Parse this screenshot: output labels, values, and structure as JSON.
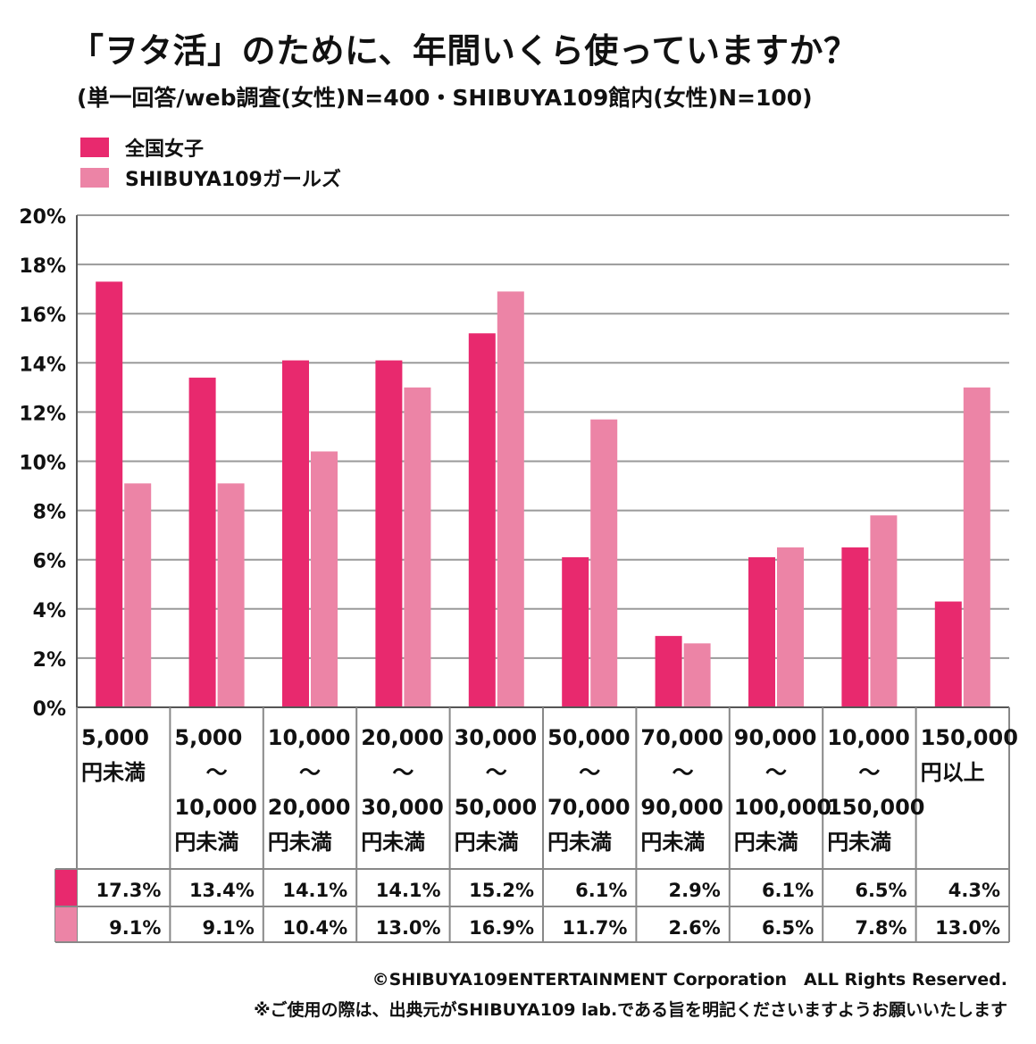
{
  "title": "「ヲタ活」のために、年間いくら使っていますか？",
  "subtitle": "(単一回答/web調査(女性)N=400・SHIBUYA109館内(女性)N=100)",
  "colors": {
    "series1": "#e8296e",
    "series2": "#ec84a6",
    "grid": "#9a9a9a",
    "axis": "#555555"
  },
  "chart_data": {
    "type": "bar",
    "ylim": [
      0,
      20
    ],
    "yticks": [
      "0%",
      "2%",
      "4%",
      "6%",
      "8%",
      "10%",
      "12%",
      "14%",
      "16%",
      "18%",
      "20%"
    ],
    "legend_position": "top-left",
    "grid": true,
    "categories": [
      [
        "5,000",
        "円未満"
      ],
      [
        "5,000",
        "～",
        "10,000",
        "円未満"
      ],
      [
        "10,000",
        "～",
        "20,000",
        "円未満"
      ],
      [
        "20,000",
        "～",
        "30,000",
        "円未満"
      ],
      [
        "30,000",
        "～",
        "50,000",
        "円未満"
      ],
      [
        "50,000",
        "～",
        "70,000",
        "円未満"
      ],
      [
        "70,000",
        "～",
        "90,000",
        "円未満"
      ],
      [
        "90,000",
        "～",
        "100,000",
        "円未満"
      ],
      [
        "10,000",
        "～",
        "150,000",
        "円未満"
      ],
      [
        "150,000",
        "円以上"
      ]
    ],
    "series": [
      {
        "name": "全国女子",
        "values": [
          17.3,
          13.4,
          14.1,
          14.1,
          15.2,
          6.1,
          2.9,
          6.1,
          6.5,
          4.3
        ],
        "labels": [
          "17.3%",
          "13.4%",
          "14.1%",
          "14.1%",
          "15.2%",
          "6.1%",
          "2.9%",
          "6.1%",
          "6.5%",
          "4.3%"
        ]
      },
      {
        "name": "SHIBUYA109ガールズ",
        "values": [
          9.1,
          9.1,
          10.4,
          13.0,
          16.9,
          11.7,
          2.6,
          6.5,
          7.8,
          13.0
        ],
        "labels": [
          "9.1%",
          "9.1%",
          "10.4%",
          "13.0%",
          "16.9%",
          "11.7%",
          "2.6%",
          "6.5%",
          "7.8%",
          "13.0%"
        ]
      }
    ]
  },
  "footer": {
    "copyright": "©SHIBUYA109ENTERTAINMENT Corporation　ALL Rights Reserved.",
    "note": "※ご使用の際は、出典元がSHIBUYA109 lab.である旨を明記くださいますようお願いいたします"
  }
}
